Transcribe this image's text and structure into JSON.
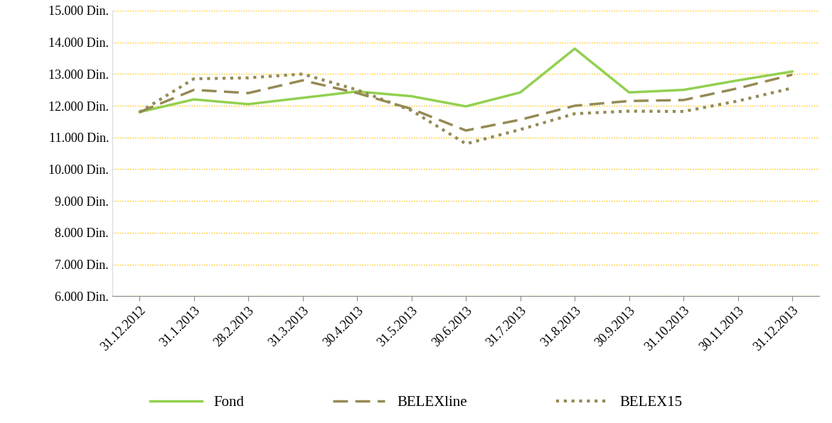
{
  "chart_data": {
    "type": "line",
    "categories": [
      "31.12.2012",
      "31.1.2013",
      "28.2.2013",
      "31.3.2013",
      "30.4.2013",
      "31.5.2013",
      "30.6.2013",
      "31.7.2013",
      "31.8.2013",
      "30.9.2013",
      "31.10.2013",
      "30.11.2013",
      "31.12.2013"
    ],
    "series": [
      {
        "name": "Fond",
        "color": "#92d050",
        "line_style": "solid",
        "values": [
          11800,
          12200,
          12050,
          12250,
          12450,
          12300,
          11980,
          12420,
          13800,
          12420,
          12500,
          12800,
          13080
        ]
      },
      {
        "name": "BELEXline",
        "color": "#948a54",
        "line_style": "dashed",
        "values": [
          11800,
          12500,
          12400,
          12800,
          12400,
          11900,
          11220,
          11560,
          12000,
          12150,
          12180,
          12550,
          12980
        ]
      },
      {
        "name": "BELEX15",
        "color": "#948a54",
        "line_style": "dotted",
        "values": [
          11800,
          12850,
          12880,
          13000,
          12500,
          11850,
          10800,
          11250,
          11750,
          11830,
          11820,
          12150,
          12560
        ]
      }
    ],
    "ylim": [
      6000,
      15000
    ],
    "yticks": [
      {
        "value": 6000,
        "label": "6.000 Din."
      },
      {
        "value": 7000,
        "label": "7.000 Din."
      },
      {
        "value": 8000,
        "label": "8.000 Din."
      },
      {
        "value": 9000,
        "label": "9.000 Din."
      },
      {
        "value": 10000,
        "label": "10.000 Din."
      },
      {
        "value": 11000,
        "label": "11.000 Din."
      },
      {
        "value": 12000,
        "label": "12.000 Din."
      },
      {
        "value": 13000,
        "label": "13.000 Din."
      },
      {
        "value": 14000,
        "label": "14.000 Din."
      },
      {
        "value": 15000,
        "label": "15.000 Din."
      }
    ],
    "grid": true,
    "legend": "lower center"
  }
}
